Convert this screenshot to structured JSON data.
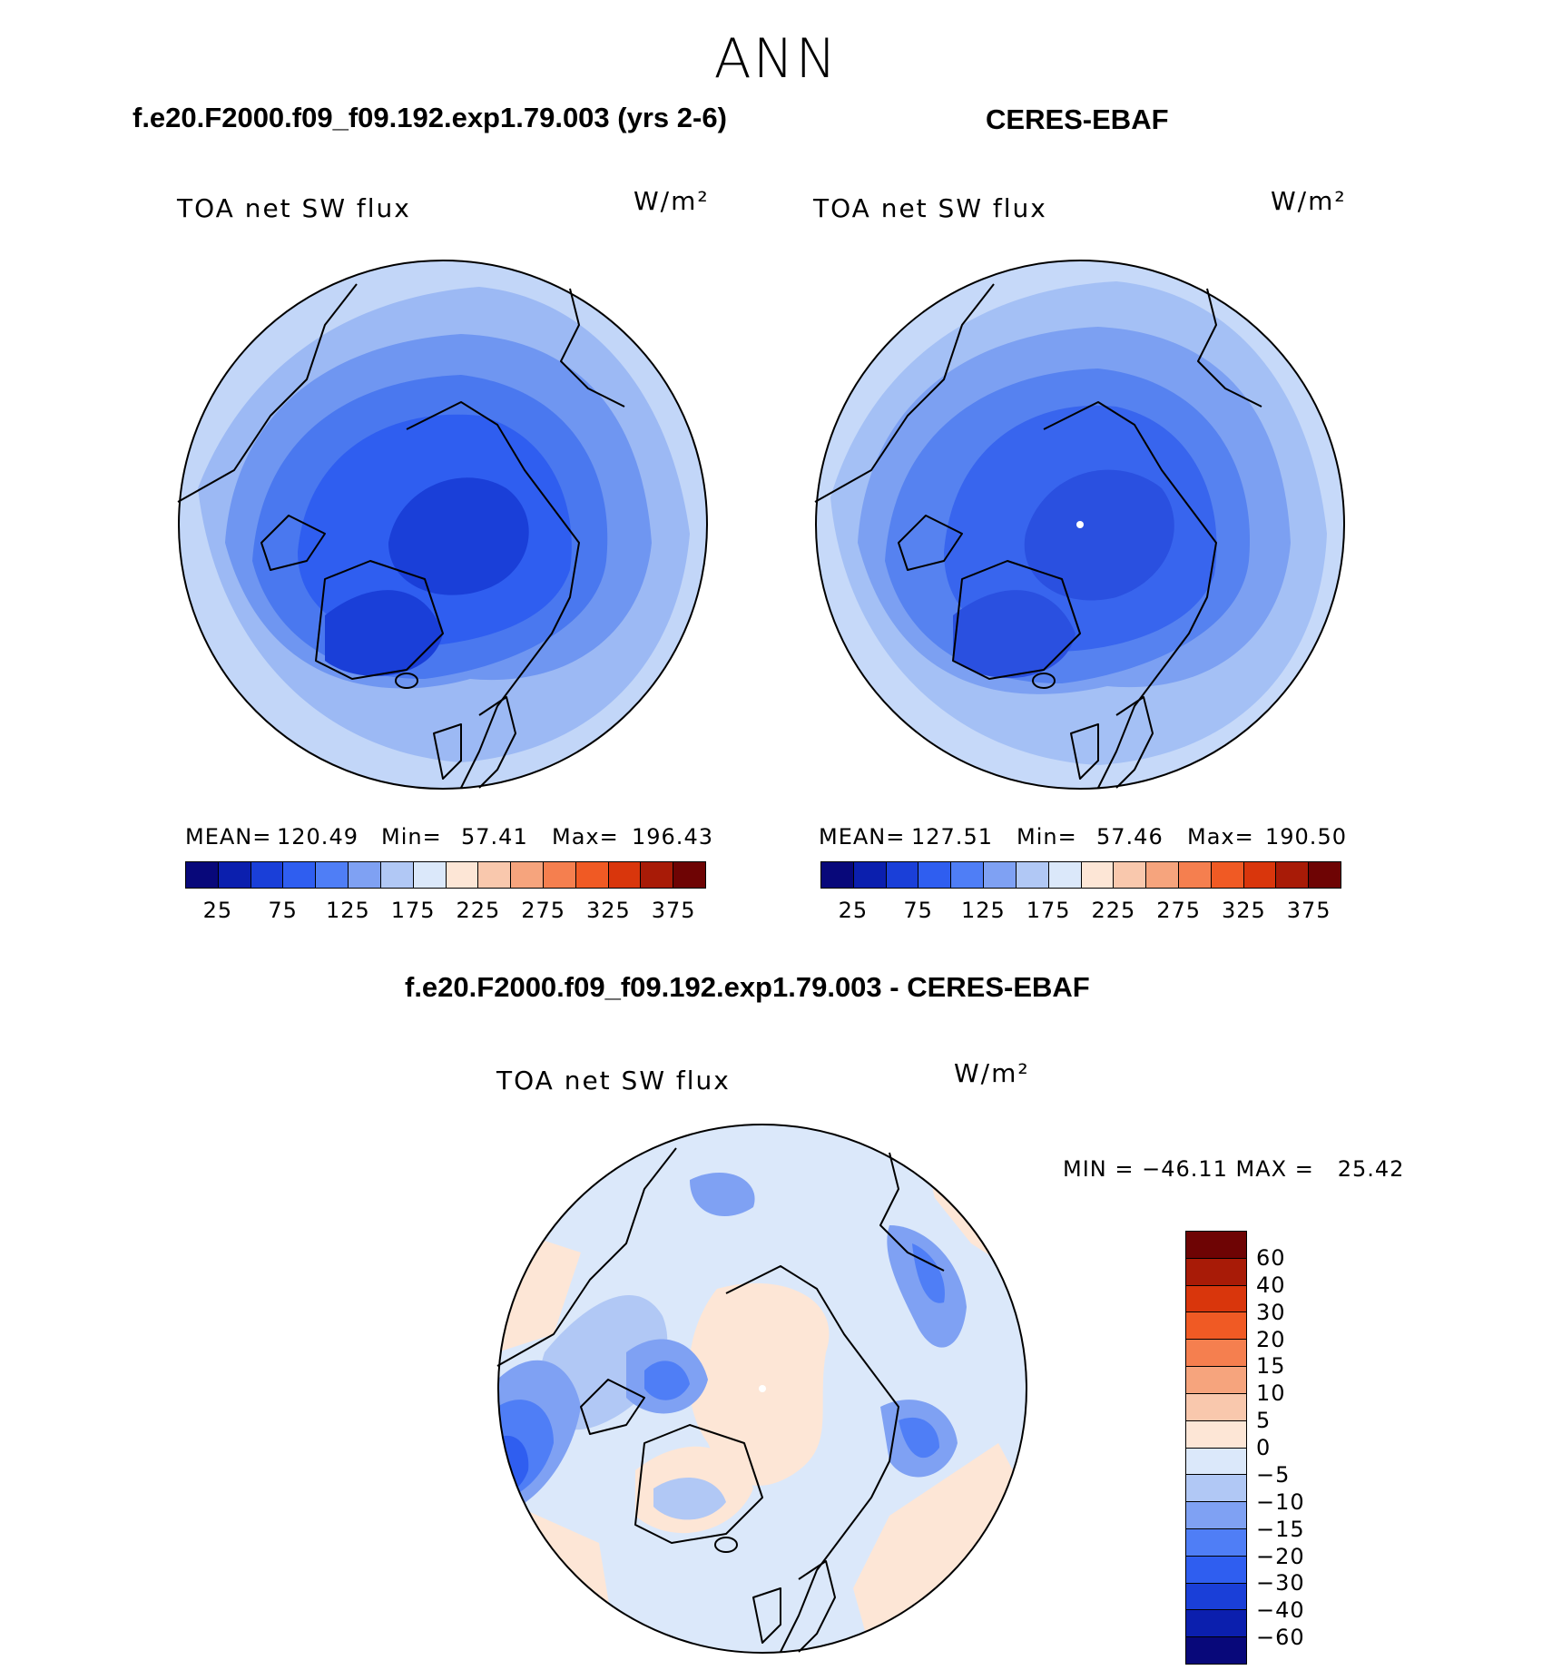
{
  "title": "ANN",
  "panels": {
    "model": {
      "heading": "f.e20.F2000.f09_f09.192.exp1.79.003 (yrs 2-6)",
      "variable": "TOA net SW flux",
      "units": "W/m²",
      "mean_label": "MEAN=",
      "mean": "120.49",
      "min_label": "Min=",
      "min": "57.41",
      "max_label": "Max=",
      "max": "196.43"
    },
    "obs": {
      "heading": "CERES-EBAF",
      "variable": "TOA net SW flux",
      "units": "W/m²",
      "mean_label": "MEAN=",
      "mean": "127.51",
      "min_label": "Min=",
      "min": "57.46",
      "max_label": "Max=",
      "max": "190.50"
    },
    "diff": {
      "heading": "f.e20.F2000.f09_f09.192.exp1.79.003 - CERES-EBAF",
      "variable": "TOA net SW flux",
      "units": "W/m²",
      "range_text": "MIN = −46.11 MAX =   25.42"
    }
  },
  "chart_data": [
    {
      "type": "heatmap",
      "title": "TOA net SW flux",
      "subtitle": "f.e20.F2000.f09_f09.192.exp1.79.003 (yrs 2-6)",
      "projection": "north polar stereographic",
      "units": "W/m²",
      "stats": {
        "mean": 120.49,
        "min": 57.41,
        "max": 196.43
      },
      "colorbar_ticks": [
        "25",
        "75",
        "125",
        "175",
        "225",
        "275",
        "325",
        "375"
      ],
      "colorbar_levels": [
        25,
        50,
        75,
        100,
        125,
        150,
        175,
        200,
        225,
        250,
        275,
        300,
        325,
        350,
        375
      ]
    },
    {
      "type": "heatmap",
      "title": "TOA net SW flux",
      "subtitle": "CERES-EBAF",
      "projection": "north polar stereographic",
      "units": "W/m²",
      "stats": {
        "mean": 127.51,
        "min": 57.46,
        "max": 190.5
      },
      "colorbar_ticks": [
        "25",
        "75",
        "125",
        "175",
        "225",
        "275",
        "325",
        "375"
      ],
      "colorbar_levels": [
        25,
        50,
        75,
        100,
        125,
        150,
        175,
        200,
        225,
        250,
        275,
        300,
        325,
        350,
        375
      ]
    },
    {
      "type": "heatmap",
      "title": "TOA net SW flux",
      "subtitle": "f.e20.F2000.f09_f09.192.exp1.79.003 - CERES-EBAF",
      "projection": "north polar stereographic",
      "units": "W/m²",
      "stats": {
        "min": -46.11,
        "max": 25.42
      },
      "colorbar_ticks": [
        "60",
        "40",
        "30",
        "20",
        "15",
        "10",
        "5",
        "0",
        "−5",
        "−10",
        "−15",
        "−20",
        "−30",
        "−40",
        "−60"
      ],
      "colorbar_levels": [
        60,
        40,
        30,
        20,
        15,
        10,
        5,
        0,
        -5,
        -10,
        -15,
        -20,
        -30,
        -40,
        -60
      ]
    }
  ],
  "colors": {
    "seq": [
      "#08087a",
      "#0b1fae",
      "#1a3fd8",
      "#2f5ef0",
      "#4f7ef6",
      "#7fa1f3",
      "#b1c8f5",
      "#dbe8fa",
      "#fde6d6",
      "#f9c8ad",
      "#f6a47d",
      "#f57f4f",
      "#f05a24",
      "#d9360c",
      "#a81b07",
      "#6e0404"
    ],
    "div": [
      "#6e0404",
      "#a81b07",
      "#d9360c",
      "#f05a24",
      "#f57f4f",
      "#f6a47d",
      "#f9c8ad",
      "#fde6d6",
      "#dbe8fa",
      "#b1c8f5",
      "#7fa1f3",
      "#4f7ef6",
      "#2f5ef0",
      "#1a3fd8",
      "#0b1fae",
      "#08087a"
    ]
  }
}
